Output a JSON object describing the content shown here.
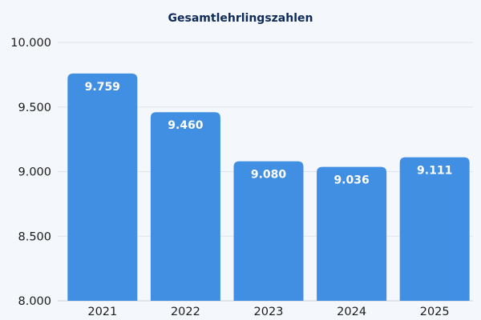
{
  "chart_data": {
    "type": "bar",
    "title": "Gesamtlehrlingszahlen",
    "xlabel": "",
    "ylabel": "",
    "categories": [
      "2021",
      "2022",
      "2023",
      "2024",
      "2025"
    ],
    "values": [
      9759,
      9460,
      9080,
      9036,
      9111
    ],
    "value_labels": [
      "9.759",
      "9.460",
      "9.080",
      "9.036",
      "9.111"
    ],
    "ylim": [
      8000,
      10000
    ],
    "yticks": [
      8000,
      8500,
      9000,
      9500,
      10000
    ],
    "ytick_labels": [
      "8.000",
      "8.500",
      "9.000",
      "9.500",
      "10.000"
    ],
    "grid": true,
    "legend": "none",
    "bar_color": "#418fe3"
  }
}
